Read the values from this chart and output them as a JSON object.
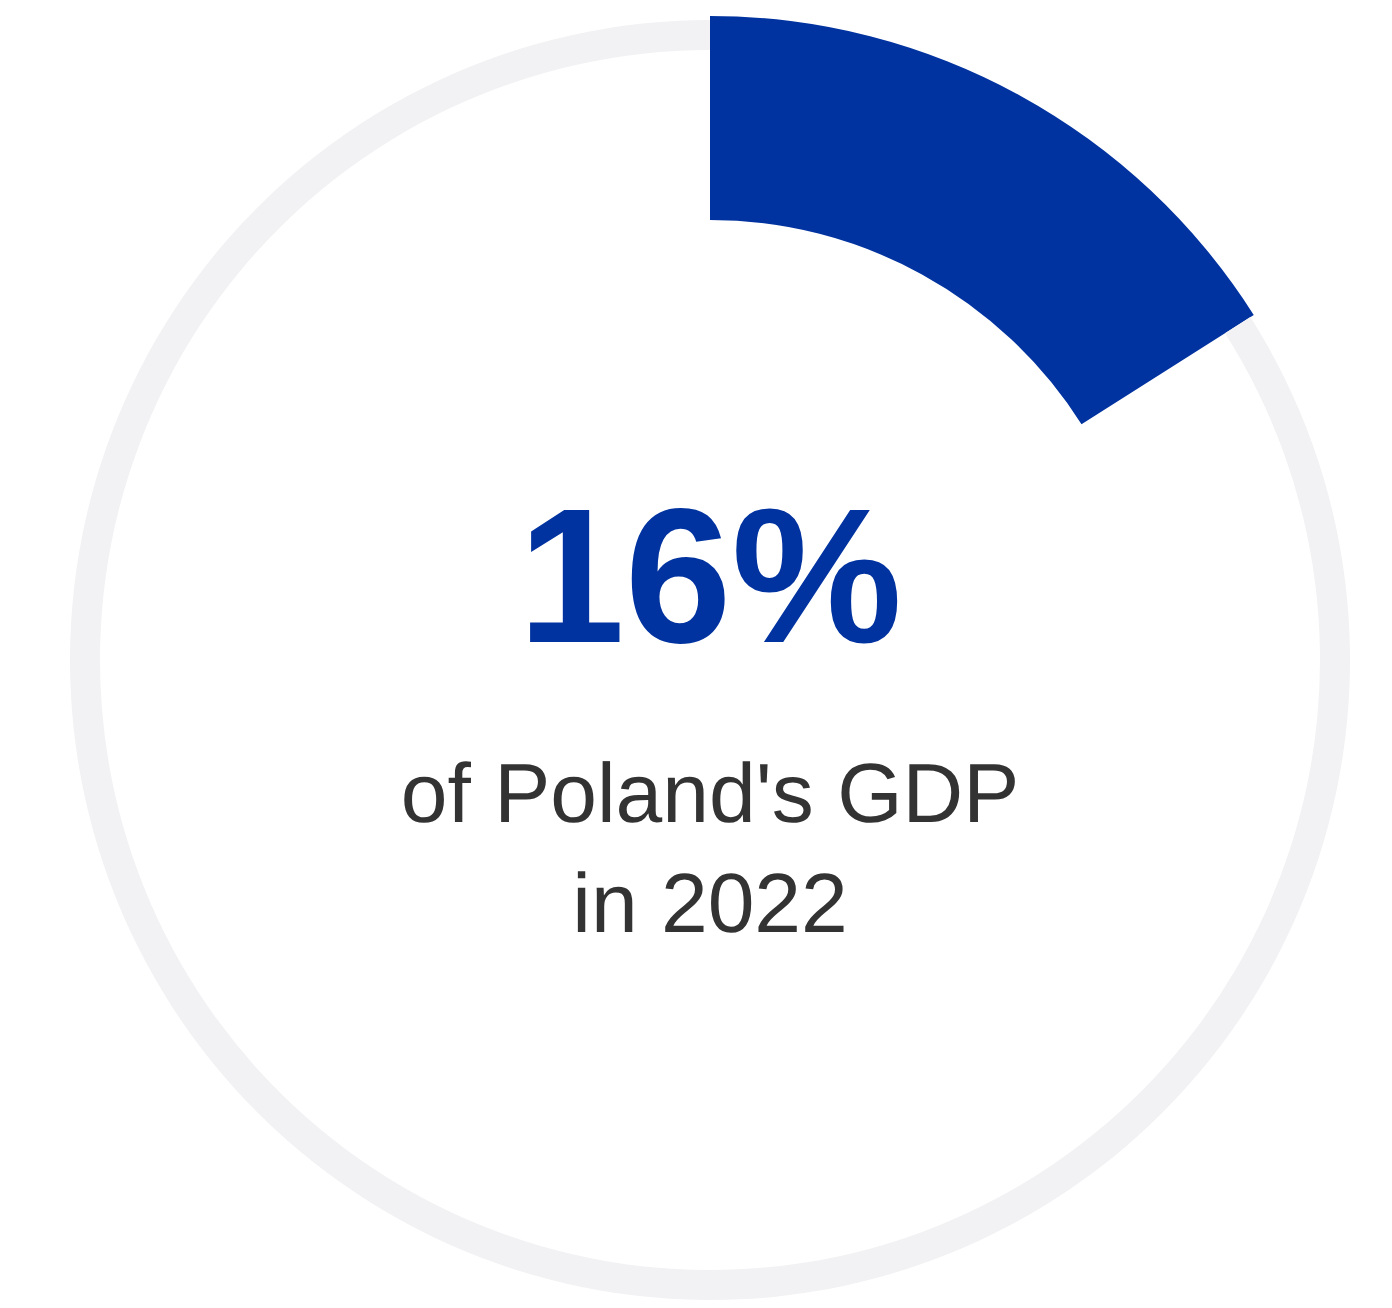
{
  "chart_data": {
    "type": "donut",
    "categories": [
      null,
      null
    ],
    "values": [
      16,
      84
    ],
    "colors": [
      "#0033a0",
      "#f2f2f4"
    ],
    "value_labels": [
      "16%",
      null
    ],
    "annotations": [
      "of Poland's GDP",
      "in 2022"
    ]
  }
}
